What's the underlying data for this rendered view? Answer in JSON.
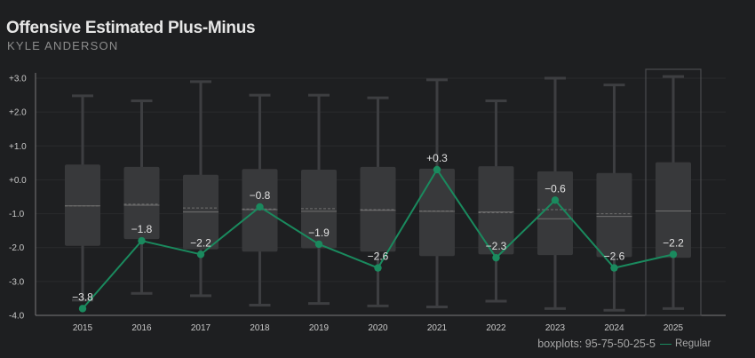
{
  "title": "Offensive Estimated Plus-Minus",
  "subtitle": "KYLE ANDERSON",
  "footer_note": "boxplots: 95-75-50-25-5",
  "legend": {
    "series_label": "Regular",
    "color": "#1a8a5e"
  },
  "colors": {
    "background": "#1e1f21",
    "box_fill": "#38393b",
    "whisker": "#3d3e41",
    "median": "#707070",
    "line": "#1a8a5e",
    "grid": "#2a2b2d"
  },
  "chart_data": {
    "type": "line",
    "title": "Offensive Estimated Plus-Minus",
    "subtitle": "KYLE ANDERSON",
    "xlabel": "",
    "ylabel": "",
    "ylim": [
      -4.0,
      3.0
    ],
    "yticks": [
      "+3.0",
      "+2.0",
      "+1.0",
      "+0.0",
      "-1.0",
      "-2.0",
      "-3.0",
      "-4.0"
    ],
    "ytick_values": [
      3,
      2,
      1,
      0,
      -1,
      -2,
      -3,
      -4
    ],
    "categories": [
      "2015",
      "2016",
      "2017",
      "2018",
      "2019",
      "2020",
      "2021",
      "2022",
      "2023",
      "2024",
      "2025"
    ],
    "highlighted_category": "2025",
    "series": [
      {
        "name": "Regular",
        "values": [
          -3.8,
          -1.8,
          -2.2,
          -0.8,
          -1.9,
          -2.6,
          0.3,
          -2.3,
          -0.6,
          -2.6,
          -2.2
        ],
        "labels": [
          "−3.8",
          "−1.8",
          "−2.2",
          "−0.8",
          "−1.9",
          "−2.6",
          "+0.3",
          "−2.3",
          "−0.6",
          "−2.6",
          "−2.2"
        ]
      }
    ],
    "boxplots": [
      {
        "p5": -3.55,
        "p25": -1.95,
        "p50": -0.77,
        "p75": 0.45,
        "p95": 2.48,
        "mean": -0.77
      },
      {
        "p5": -3.35,
        "p25": -1.75,
        "p50": -0.75,
        "p75": 0.38,
        "p95": 2.33,
        "mean": -0.72
      },
      {
        "p5": -3.42,
        "p25": -2.05,
        "p50": -0.95,
        "p75": 0.15,
        "p95": 2.9,
        "mean": -0.83
      },
      {
        "p5": -3.7,
        "p25": -2.12,
        "p50": -0.88,
        "p75": 0.32,
        "p95": 2.5,
        "mean": -0.86
      },
      {
        "p5": -3.65,
        "p25": -2.02,
        "p50": -0.93,
        "p75": 0.3,
        "p95": 2.5,
        "mean": -0.85
      },
      {
        "p5": -3.72,
        "p25": -2.12,
        "p50": -0.9,
        "p75": 0.38,
        "p95": 2.42,
        "mean": -0.88
      },
      {
        "p5": -3.75,
        "p25": -2.25,
        "p50": -0.93,
        "p75": 0.33,
        "p95": 2.95,
        "mean": -0.92
      },
      {
        "p5": -3.58,
        "p25": -2.2,
        "p50": -0.95,
        "p75": 0.4,
        "p95": 2.33,
        "mean": -0.97
      },
      {
        "p5": -3.8,
        "p25": -2.22,
        "p50": -1.15,
        "p75": 0.25,
        "p95": 3.0,
        "mean": -0.88
      },
      {
        "p5": -3.85,
        "p25": -2.28,
        "p50": -1.08,
        "p75": 0.2,
        "p95": 2.8,
        "mean": -1.0
      },
      {
        "p5": -3.8,
        "p25": -2.3,
        "p50": -0.92,
        "p75": 0.52,
        "p95": 3.05,
        "mean": -0.92
      }
    ],
    "grid": true,
    "legend_position": "bottom-right"
  }
}
